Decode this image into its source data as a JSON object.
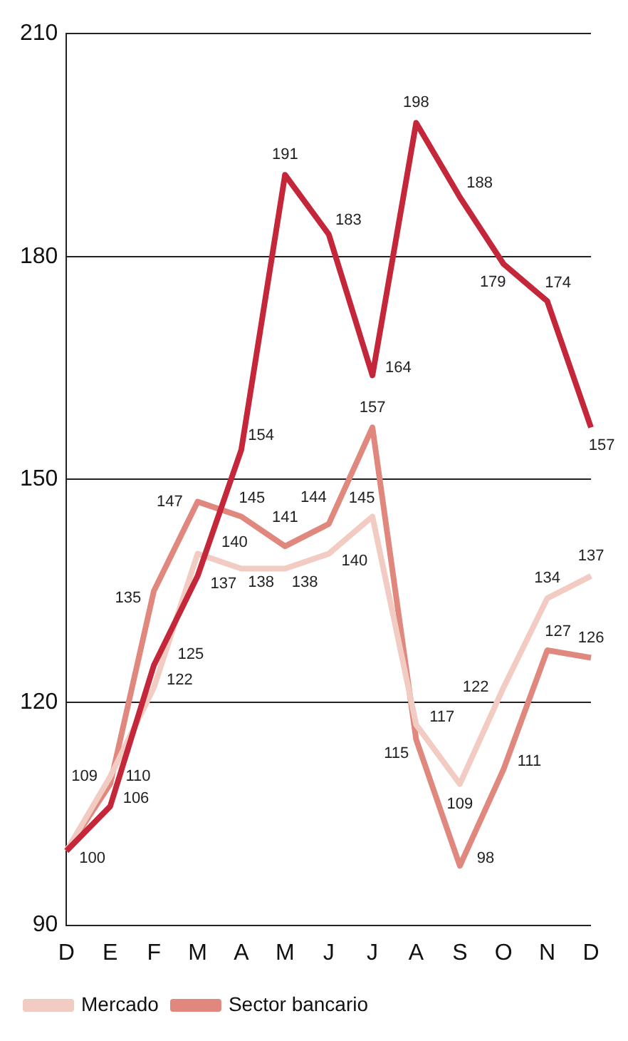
{
  "chart_data": {
    "type": "line",
    "categories": [
      "D",
      "E",
      "F",
      "M",
      "A",
      "M",
      "J",
      "J",
      "A",
      "S",
      "O",
      "N",
      "D"
    ],
    "series": [
      {
        "color": "#c4263a",
        "values": [
          100,
          106,
          125,
          137,
          154,
          191,
          183,
          164,
          198,
          188,
          179,
          174,
          157
        ],
        "value_labels": [
          "100",
          "106",
          "125",
          "137",
          "154",
          "191",
          "183",
          "164",
          "198",
          "188",
          "179",
          "174",
          "157"
        ]
      },
      {
        "name": "Mercado",
        "color": "#f2cbc2",
        "values": [
          100,
          110,
          122,
          140,
          138,
          138,
          140,
          145,
          117,
          109,
          122,
          134,
          137
        ],
        "value_labels": [
          null,
          "110",
          "122",
          "140",
          "138",
          "138",
          "140",
          "145",
          "117",
          "109",
          "122",
          "134",
          "137"
        ]
      },
      {
        "name": "Sector bancario",
        "color": "#e0877e",
        "values": [
          100,
          109,
          135,
          147,
          145,
          141,
          144,
          157,
          115,
          98,
          111,
          127,
          126
        ],
        "value_labels": [
          null,
          "109",
          "135",
          "147",
          "145",
          "141",
          "144",
          "157",
          "115",
          "98",
          "111",
          "127",
          "126"
        ]
      }
    ],
    "ylim": [
      90,
      210
    ],
    "yticks": [
      90,
      120,
      150,
      180,
      210
    ],
    "grid": "y",
    "legend": "bottom",
    "marker": "none",
    "line_style": "solid"
  }
}
